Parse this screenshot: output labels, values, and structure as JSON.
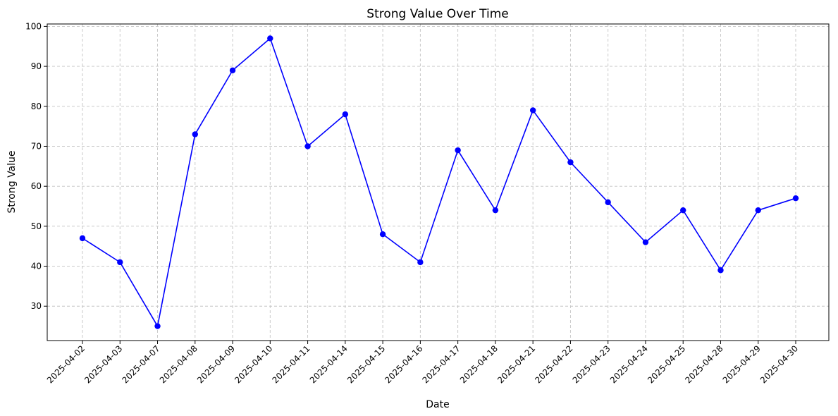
{
  "chart_data": {
    "type": "line",
    "title": "Strong Value Over Time",
    "xlabel": "Date",
    "ylabel": "Strong Value",
    "categories": [
      "2025-04-02",
      "2025-04-03",
      "2025-04-07",
      "2025-04-08",
      "2025-04-09",
      "2025-04-10",
      "2025-04-11",
      "2025-04-14",
      "2025-04-15",
      "2025-04-16",
      "2025-04-17",
      "2025-04-18",
      "2025-04-21",
      "2025-04-22",
      "2025-04-23",
      "2025-04-24",
      "2025-04-25",
      "2025-04-28",
      "2025-04-29",
      "2025-04-30"
    ],
    "values": [
      47,
      41,
      25,
      73,
      89,
      97,
      70,
      78,
      48,
      41,
      69,
      54,
      79,
      66,
      56,
      46,
      54,
      39,
      54,
      57
    ],
    "yticks": [
      30,
      40,
      50,
      60,
      70,
      80,
      90,
      100
    ],
    "ylim": [
      21.4,
      100.6
    ],
    "grid": true,
    "line_color": "#0000ff",
    "marker": "circle"
  }
}
